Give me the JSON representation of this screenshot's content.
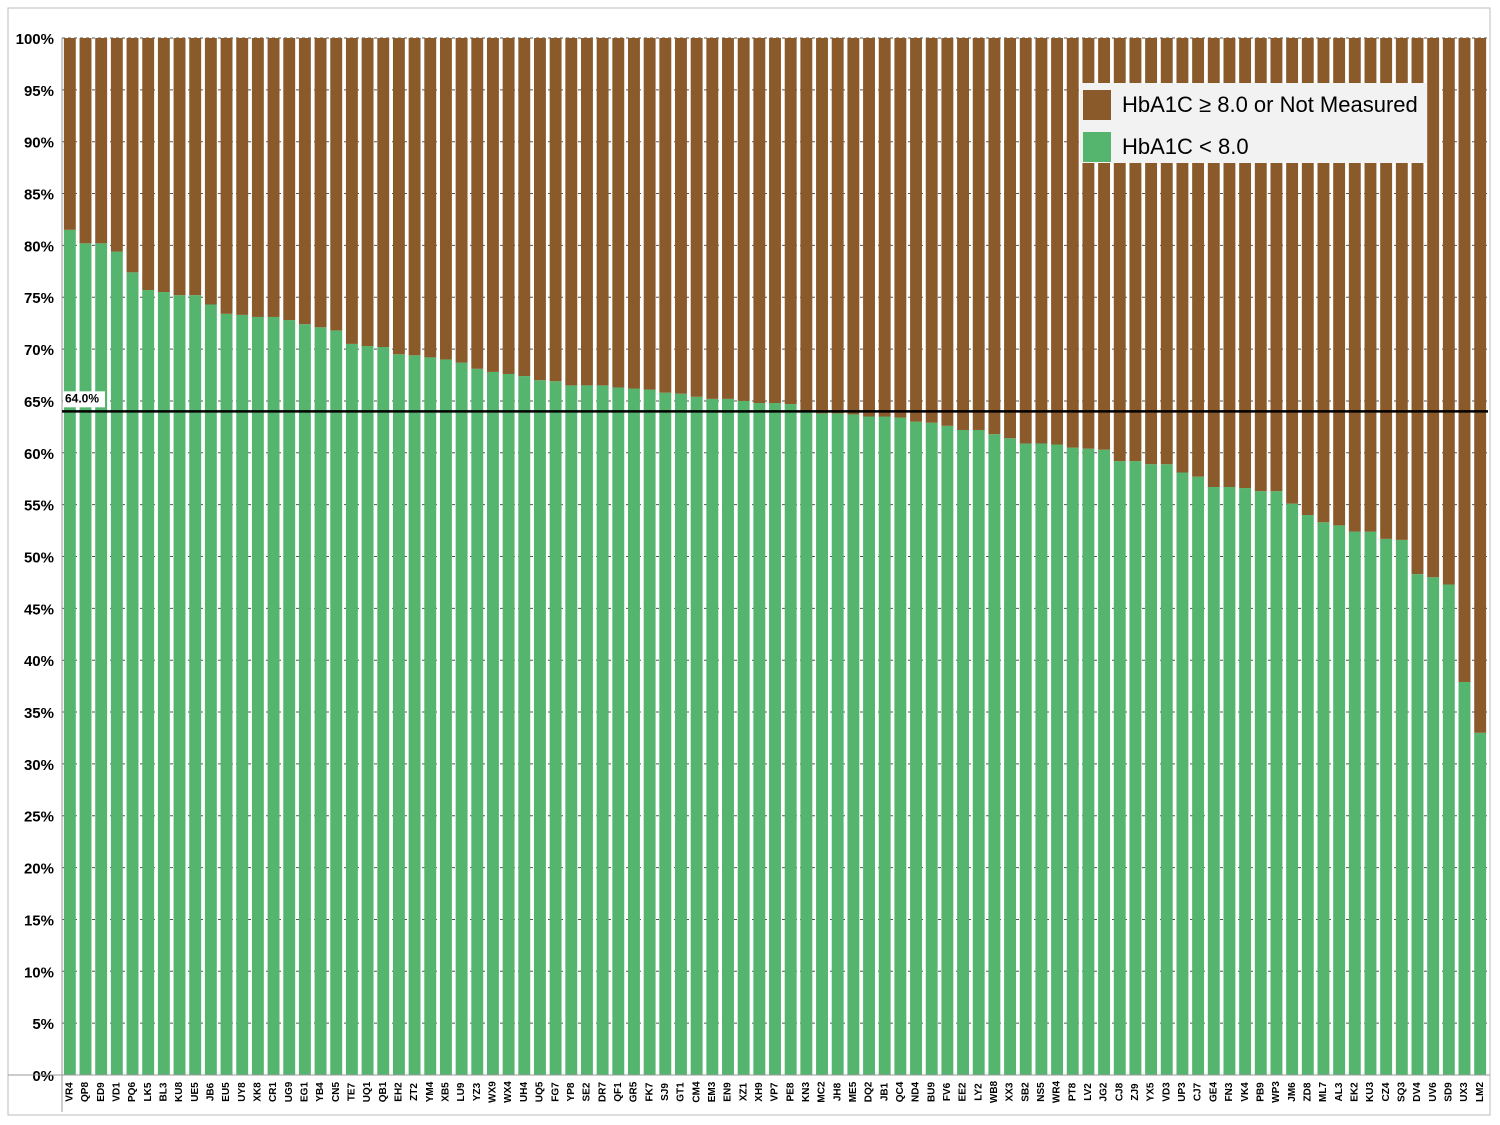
{
  "chart_data": {
    "type": "stacked_bar",
    "categories": [
      "VR4",
      "QP8",
      "ED9",
      "VD1",
      "PQ6",
      "LK5",
      "BL3",
      "KU8",
      "UE5",
      "JB6",
      "EU5",
      "UY8",
      "XK8",
      "CR1",
      "UG9",
      "EG1",
      "YB4",
      "CN5",
      "TE7",
      "UQ1",
      "QB1",
      "EH2",
      "ZT2",
      "YM4",
      "XB5",
      "LU9",
      "YZ3",
      "WX9",
      "WX4",
      "UH4",
      "UQ5",
      "FG7",
      "YP8",
      "SE2",
      "DR7",
      "QF1",
      "GR5",
      "FK7",
      "SJ9",
      "GT1",
      "CM4",
      "EM3",
      "EN9",
      "XZ1",
      "XH9",
      "VP7",
      "PE8",
      "KN3",
      "MC2",
      "JH8",
      "ME5",
      "DQ2",
      "JB1",
      "QC4",
      "ND4",
      "BU9",
      "FV6",
      "EE2",
      "LY2",
      "WB8",
      "XX3",
      "SB2",
      "NS5",
      "WR4",
      "PT8",
      "LV2",
      "JG2",
      "CJ8",
      "ZJ9",
      "YX5",
      "VD3",
      "UP3",
      "CJ7",
      "GE4",
      "FN3",
      "VK4",
      "PB9",
      "WP3",
      "JM6",
      "ZD8",
      "ML7",
      "AL3",
      "EK2",
      "KU3",
      "CZ4",
      "SQ3",
      "DV4",
      "UV6",
      "SD9",
      "UX3",
      "LM2"
    ],
    "series": [
      {
        "name": "HbA1C < 8.0",
        "color": "#55b56f",
        "values": [
          81.5,
          80.2,
          80.2,
          79.4,
          77.4,
          75.7,
          75.5,
          75.2,
          75.2,
          74.3,
          73.4,
          73.3,
          73.1,
          73.1,
          72.8,
          72.4,
          72.1,
          71.8,
          70.5,
          70.3,
          70.2,
          69.5,
          69.4,
          69.2,
          69.0,
          68.7,
          68.1,
          67.8,
          67.6,
          67.4,
          67.0,
          66.9,
          66.5,
          66.5,
          66.5,
          66.3,
          66.2,
          66.1,
          65.8,
          65.7,
          65.4,
          65.2,
          65.2,
          65.0,
          64.8,
          64.8,
          64.7,
          63.9,
          63.8,
          63.8,
          63.7,
          63.5,
          63.5,
          63.4,
          63.0,
          62.9,
          62.6,
          62.2,
          62.2,
          61.8,
          61.4,
          60.9,
          60.9,
          60.8,
          60.5,
          60.4,
          60.3,
          59.2,
          59.2,
          58.9,
          58.9,
          58.1,
          57.7,
          56.7,
          56.7,
          56.6,
          56.3,
          56.3,
          55.1,
          54.0,
          53.3,
          53.0,
          52.4,
          52.4,
          51.7,
          51.6,
          48.3,
          48.0,
          47.3,
          37.9,
          33.0
        ]
      },
      {
        "name": "HbA1C ≥ 8.0 or Not Measured",
        "color": "#8b5a2b",
        "values": [
          18.5,
          19.8,
          19.8,
          20.6,
          22.6,
          24.3,
          24.5,
          24.8,
          24.8,
          25.7,
          26.6,
          26.7,
          26.9,
          26.9,
          27.2,
          27.6,
          27.9,
          28.2,
          29.5,
          29.7,
          29.8,
          30.5,
          30.6,
          30.8,
          31.0,
          31.3,
          31.9,
          32.2,
          32.4,
          32.6,
          33.0,
          33.1,
          33.5,
          33.5,
          33.5,
          33.7,
          33.8,
          33.9,
          34.2,
          34.3,
          34.6,
          34.8,
          34.8,
          35.0,
          35.2,
          35.2,
          35.3,
          36.1,
          36.2,
          36.2,
          36.3,
          36.5,
          36.5,
          36.6,
          37.0,
          37.1,
          37.4,
          37.8,
          37.8,
          38.2,
          38.6,
          39.1,
          39.1,
          39.2,
          39.5,
          39.6,
          39.7,
          40.8,
          40.8,
          41.1,
          41.1,
          41.9,
          42.3,
          43.3,
          43.3,
          43.4,
          43.7,
          43.7,
          44.9,
          46.0,
          46.7,
          47.0,
          47.6,
          47.6,
          48.3,
          48.4,
          51.7,
          52.0,
          52.7,
          62.1,
          67.0
        ]
      }
    ],
    "ylim": [
      0,
      100
    ],
    "yticks": [
      {
        "value": 0,
        "label": "0%"
      },
      {
        "value": 5,
        "label": "5%"
      },
      {
        "value": 10,
        "label": "10%"
      },
      {
        "value": 15,
        "label": "15%"
      },
      {
        "value": 20,
        "label": "20%"
      },
      {
        "value": 25,
        "label": "25%"
      },
      {
        "value": 30,
        "label": "30%"
      },
      {
        "value": 35,
        "label": "35%"
      },
      {
        "value": 40,
        "label": "40%"
      },
      {
        "value": 45,
        "label": "45%"
      },
      {
        "value": 50,
        "label": "50%"
      },
      {
        "value": 55,
        "label": "55%"
      },
      {
        "value": 60,
        "label": "60%"
      },
      {
        "value": 65,
        "label": "65%"
      },
      {
        "value": 70,
        "label": "70%"
      },
      {
        "value": 75,
        "label": "75%"
      },
      {
        "value": 80,
        "label": "80%"
      },
      {
        "value": 85,
        "label": "85%"
      },
      {
        "value": 90,
        "label": "90%"
      },
      {
        "value": 95,
        "label": "95%"
      },
      {
        "value": 100,
        "label": "100%"
      }
    ],
    "grid": true,
    "reference_line": {
      "value": 64,
      "label": "64.0%"
    },
    "legend": "upper right"
  }
}
